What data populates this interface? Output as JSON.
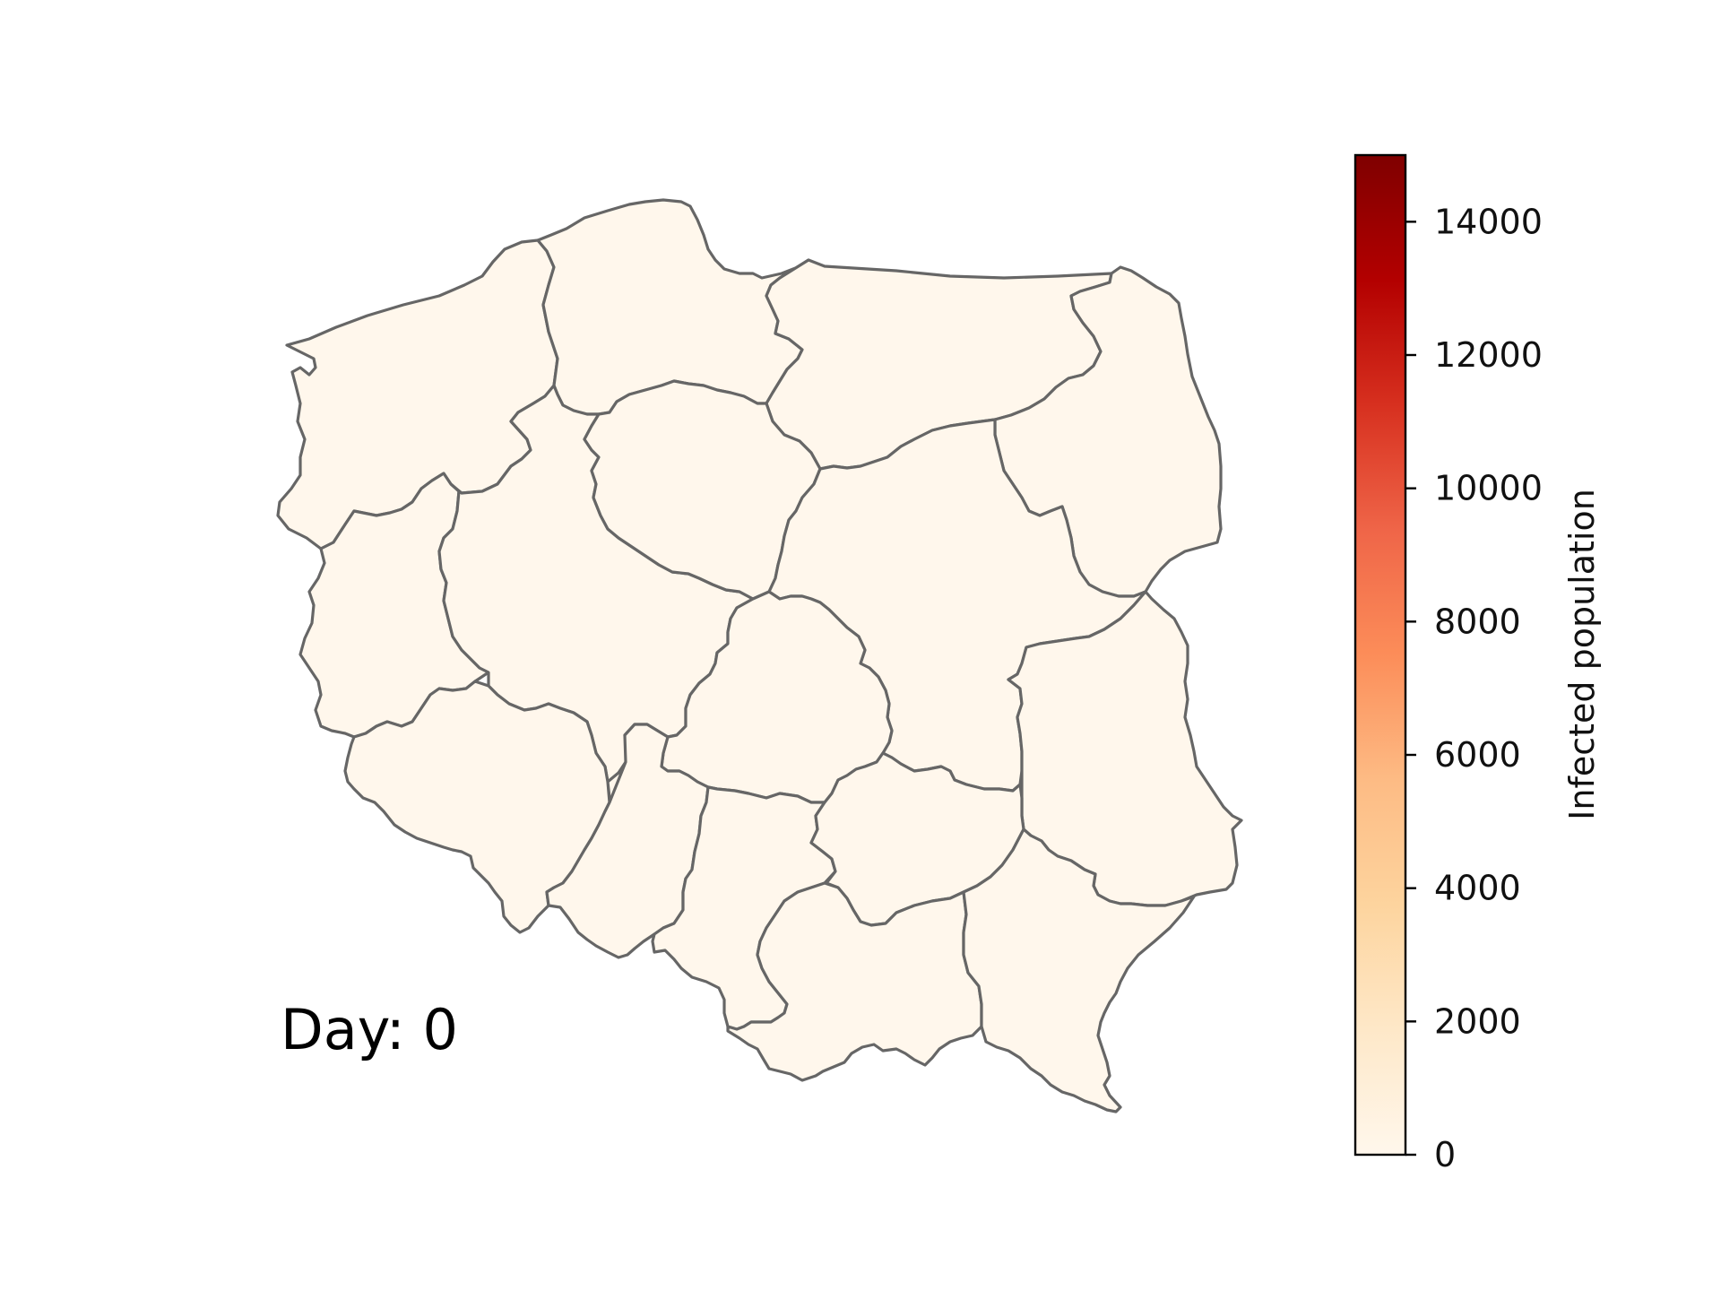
{
  "chart_data": {
    "type": "choropleth",
    "day_label": "Day: 0",
    "colorbar": {
      "label": "Infected population",
      "min": 0,
      "max": 15000,
      "ticks": [
        0,
        2000,
        4000,
        6000,
        8000,
        10000,
        12000,
        14000
      ],
      "tick_labels": [
        "0",
        "2000",
        "4000",
        "6000",
        "8000",
        "10000",
        "12000",
        "14000"
      ],
      "colormap": "OrRd",
      "colors": [
        "#fff7ec",
        "#fee8c8",
        "#fdd49e",
        "#fdbb84",
        "#fc8d59",
        "#ef6548",
        "#d7301f",
        "#b30000",
        "#7f0000"
      ]
    },
    "regions": [
      {
        "id": "zachodniopomorskie",
        "value": 0
      },
      {
        "id": "pomorskie",
        "value": 0
      },
      {
        "id": "warminsko-mazurskie",
        "value": 0
      },
      {
        "id": "podlaskie",
        "value": 0
      },
      {
        "id": "lubuskie",
        "value": 0
      },
      {
        "id": "wielkopolskie",
        "value": 0
      },
      {
        "id": "kujawsko-pomorskie",
        "value": 0
      },
      {
        "id": "mazowieckie",
        "value": 0
      },
      {
        "id": "lodzkie",
        "value": 0
      },
      {
        "id": "lubelskie",
        "value": 0
      },
      {
        "id": "dolnoslaskie",
        "value": 0
      },
      {
        "id": "opolskie",
        "value": 0
      },
      {
        "id": "slaskie",
        "value": 0
      },
      {
        "id": "swietokrzyskie",
        "value": 0
      },
      {
        "id": "malopolskie",
        "value": 0
      },
      {
        "id": "podkarpackie",
        "value": 0
      }
    ],
    "edge_color": "#666666"
  }
}
